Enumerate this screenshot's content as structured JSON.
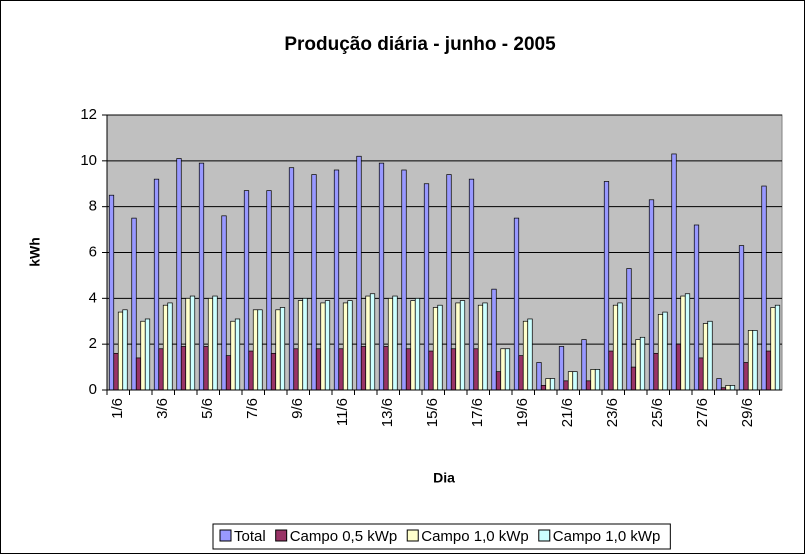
{
  "chart_data": {
    "type": "bar",
    "title": "Produção diária - junho - 2005",
    "x_label": "Dia",
    "y_label": "kWh",
    "categories": [
      "1/6",
      null,
      "3/6",
      null,
      "5/6",
      null,
      "7/6",
      null,
      "9/6",
      null,
      "11/6",
      null,
      "13/6",
      null,
      "15/6",
      null,
      "17/6",
      null,
      "19/6",
      null,
      "21/6",
      null,
      "23/6",
      null,
      "25/6",
      null,
      "27/6",
      null,
      "29/6",
      null
    ],
    "series": [
      {
        "name": "Total",
        "color": "#9999ff",
        "values": [
          8.5,
          7.5,
          9.2,
          10.1,
          9.9,
          7.6,
          8.7,
          8.7,
          9.7,
          9.4,
          9.6,
          10.2,
          9.9,
          9.6,
          9.0,
          9.4,
          9.2,
          4.4,
          7.5,
          1.2,
          1.9,
          2.2,
          9.1,
          5.3,
          8.3,
          10.3,
          7.2,
          0.5,
          6.3,
          8.9
        ]
      },
      {
        "name": "Campo 0,5 kWp",
        "color": "#993366",
        "values": [
          1.6,
          1.4,
          1.8,
          1.9,
          1.9,
          1.5,
          1.7,
          1.6,
          1.8,
          1.8,
          1.8,
          1.9,
          1.9,
          1.8,
          1.7,
          1.8,
          1.8,
          0.8,
          1.5,
          0.2,
          0.4,
          0.4,
          1.7,
          1.0,
          1.6,
          2.0,
          1.4,
          0.1,
          1.2,
          1.7
        ]
      },
      {
        "name": "Campo 1,0 kWp",
        "color": "#ffffcc",
        "values": [
          3.4,
          3.0,
          3.7,
          4.0,
          4.0,
          3.0,
          3.5,
          3.5,
          3.9,
          3.8,
          3.8,
          4.1,
          4.0,
          3.9,
          3.6,
          3.8,
          3.7,
          1.8,
          3.0,
          0.5,
          0.8,
          0.9,
          3.7,
          2.2,
          3.3,
          4.1,
          2.9,
          0.2,
          2.6,
          3.6
        ]
      },
      {
        "name": "Campo 1,0 kWp",
        "color": "#ccffff",
        "values": [
          3.5,
          3.1,
          3.8,
          4.1,
          4.1,
          3.1,
          3.5,
          3.6,
          4.0,
          3.9,
          3.9,
          4.2,
          4.1,
          4.0,
          3.7,
          3.9,
          3.8,
          1.8,
          3.1,
          0.5,
          0.8,
          0.9,
          3.8,
          2.3,
          3.4,
          4.2,
          3.0,
          0.2,
          2.6,
          3.7
        ]
      }
    ],
    "ylim": [
      0,
      12
    ],
    "yticks": [
      0,
      2,
      4,
      6,
      8,
      10,
      12
    ],
    "grid": true,
    "plot_background": "#c0c0c0",
    "legend": "bottom"
  }
}
